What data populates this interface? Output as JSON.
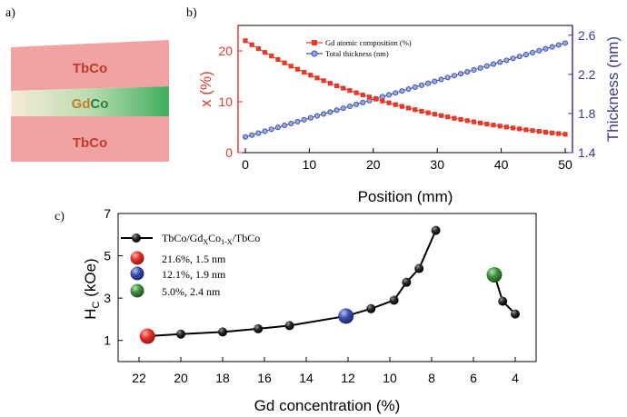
{
  "panel_a": {
    "label": "a)",
    "layers": [
      {
        "name": "TbCo",
        "color": "#f0a3a3",
        "text_color": "#c0392b"
      },
      {
        "name_parts": [
          "Gd",
          "Co"
        ],
        "gd_color": "#c77b26",
        "co_color": "#2e7d3a"
      },
      {
        "name": "TbCo",
        "color": "#f0a3a3",
        "text_color": "#c0392b"
      }
    ]
  },
  "chart_data": [
    {
      "id": "panel_b",
      "panel_label": "b)",
      "type": "line",
      "xlabel": "Position (mm)",
      "ylabel_left": "x (%)",
      "ylabel_right": "Thickness (nm)",
      "xlim": [
        0,
        50
      ],
      "ylim_left": [
        0,
        25
      ],
      "ylim_right": [
        1.4,
        2.7
      ],
      "xticks": [
        "0",
        "10",
        "20",
        "30",
        "40",
        "50"
      ],
      "yticks_left": [
        "0",
        "10",
        "20"
      ],
      "yticks_right": [
        "1.4",
        "1.8",
        "2.2",
        "2.6"
      ],
      "left_color": "#e03a2f",
      "right_color": "#3b3b8f",
      "legend_position": "top-left",
      "series": [
        {
          "name": "Gd atomic composition (%)",
          "axis": "left",
          "marker": "square",
          "color": "#e53a2a",
          "x_start": 0,
          "x_end": 50,
          "points": 50,
          "y_start": 22.0,
          "y_end": 3.6,
          "decay_rate": 0.036
        },
        {
          "name": "Total thickness (nm)",
          "axis": "right",
          "marker": "circle",
          "color": "#3a4fa5",
          "x_start": 0,
          "x_end": 50,
          "points": 50,
          "y_start": 1.56,
          "y_end": 2.52
        }
      ]
    },
    {
      "id": "panel_c",
      "panel_label": "c)",
      "type": "scatter",
      "xlabel": "Gd concentration (%)",
      "ylabel": "H",
      "ylabel_sub": "C",
      "ylabel_unit": " (kOe)",
      "x_reversed": true,
      "xlim": [
        23,
        3
      ],
      "ylim": [
        0,
        7
      ],
      "xticks": [
        "22",
        "20",
        "18",
        "16",
        "14",
        "12",
        "10",
        "8",
        "6",
        "4"
      ],
      "yticks": [
        "1",
        "3",
        "5",
        "7"
      ],
      "legend_position": "top-left",
      "series": [
        {
          "name_parts": [
            "TbCo/Gd",
            "X",
            "Co",
            "1-X",
            "/TbCo"
          ],
          "marker": "black-sphere",
          "segments": [
            [
              [
                21.6,
                1.2
              ],
              [
                20,
                1.3
              ],
              [
                18,
                1.4
              ],
              [
                16.3,
                1.55
              ],
              [
                14.8,
                1.7
              ],
              [
                12.1,
                2.15
              ],
              [
                10.9,
                2.5
              ],
              [
                9.8,
                2.9
              ],
              [
                9.2,
                3.75
              ],
              [
                8.6,
                4.4
              ],
              [
                7.8,
                6.2
              ]
            ],
            [
              [
                5.0,
                4.1
              ],
              [
                4.6,
                2.85
              ],
              [
                4.0,
                2.25
              ]
            ]
          ]
        }
      ],
      "highlights": [
        {
          "label": "21.6%, 1.5 nm",
          "x": 21.6,
          "y": 1.2,
          "color": "#e02a20"
        },
        {
          "label": "12.1%, 1.9 nm",
          "x": 12.1,
          "y": 2.15,
          "color": "#3a4aa8"
        },
        {
          "label": "5.0%, 2.4 nm",
          "x": 5.0,
          "y": 4.1,
          "color": "#3c8a3a"
        }
      ]
    }
  ]
}
